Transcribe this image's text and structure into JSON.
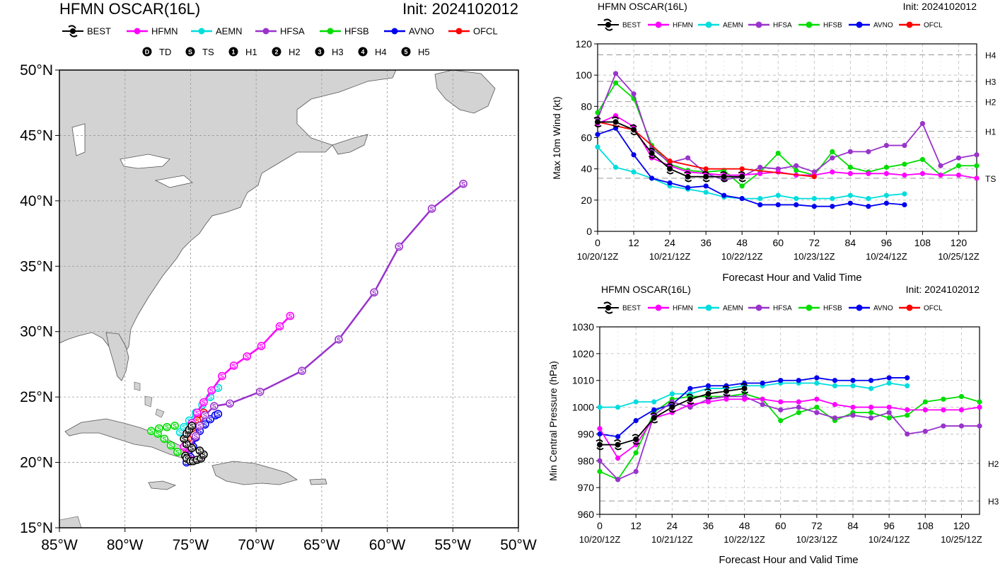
{
  "colors": {
    "BEST": "#000000",
    "HFMN": "#ff00ff",
    "AEMN": "#00dddd",
    "HFSA": "#9933cc",
    "HFSB": "#00dd00",
    "AVNO": "#0000ee",
    "OFCL": "#ff0000",
    "land": "#d3d3d3",
    "coast": "#555555",
    "grid": "#aaaaaa"
  },
  "map": {
    "title": "HFMN OSCAR(16L)",
    "init": "Init: 2024102012",
    "lon_ticks": [
      "85°W",
      "80°W",
      "75°W",
      "70°W",
      "65°W",
      "60°W",
      "55°W",
      "50°W"
    ],
    "lat_ticks": [
      "50°N",
      "45°N",
      "40°N",
      "35°N",
      "30°N",
      "25°N",
      "20°N",
      "15°N"
    ],
    "legend": [
      "BEST",
      "HFMN",
      "AEMN",
      "HFSA",
      "HFSB",
      "AVNO",
      "OFCL"
    ],
    "intensity_legend": [
      {
        "symbol": "D",
        "label": "TD"
      },
      {
        "symbol": "S",
        "label": "TS"
      },
      {
        "symbol": "1",
        "label": "H1"
      },
      {
        "symbol": "2",
        "label": "H2"
      },
      {
        "symbol": "3",
        "label": "H3"
      },
      {
        "symbol": "4",
        "label": "H4"
      },
      {
        "symbol": "5",
        "label": "H5"
      }
    ]
  },
  "wind_chart": {
    "title": "HFMN OSCAR(16L)",
    "init": "Init: 2024102012",
    "ylabel": "Max 10m Wind (kt)",
    "xlabel": "Forecast Hour and Valid Time",
    "legend": [
      "BEST",
      "HFMN",
      "AEMN",
      "HFSA",
      "HFSB",
      "AVNO",
      "OFCL"
    ],
    "category_labels": [
      "H4",
      "H3",
      "H2",
      "H1",
      "TS"
    ],
    "valid_time_labels": [
      "10/20/12Z",
      "10/21/12Z",
      "10/22/12Z",
      "10/23/12Z",
      "10/24/12Z",
      "10/25/12Z"
    ],
    "hour_ticks": [
      "0",
      "12",
      "24",
      "36",
      "48",
      "60",
      "72",
      "84",
      "96",
      "108",
      "120"
    ],
    "y_ticks": [
      "0",
      "20",
      "40",
      "60",
      "80",
      "100",
      "120"
    ]
  },
  "pressure_chart": {
    "title": "HFMN OSCAR(16L)",
    "init": "Init: 2024102012",
    "ylabel": "Min Central Pressure (hPa)",
    "xlabel": "Forecast Hour and Valid Time",
    "legend": [
      "BEST",
      "HFMN",
      "AEMN",
      "HFSA",
      "HFSB",
      "AVNO",
      "OFCL"
    ],
    "category_labels": [
      "H2",
      "H3"
    ],
    "valid_time_labels": [
      "10/20/12Z",
      "10/21/12Z",
      "10/22/12Z",
      "10/23/12Z",
      "10/24/12Z",
      "10/25/12Z"
    ],
    "hour_ticks": [
      "0",
      "12",
      "24",
      "36",
      "48",
      "60",
      "72",
      "84",
      "96",
      "108",
      "120"
    ],
    "y_ticks": [
      "960",
      "970",
      "980",
      "990",
      "1000",
      "1010",
      "1020",
      "1030"
    ]
  },
  "chart_data": [
    {
      "type": "line",
      "name": "track_map",
      "xlim": [
        -85,
        -50
      ],
      "ylim": [
        15,
        50
      ],
      "series": [
        {
          "name": "BEST",
          "lon": [
            -75.4,
            -75.3,
            -75.0,
            -74.8,
            -74.5,
            -74.2,
            -74.0,
            -74.3,
            -74.9,
            -75.3,
            -75.5,
            -75.3,
            -75.1,
            -74.9
          ],
          "lat": [
            20.5,
            20.3,
            20.1,
            20.1,
            20.2,
            20.3,
            20.6,
            20.9,
            21.1,
            21.4,
            21.8,
            22.2,
            22.5,
            22.8
          ]
        },
        {
          "name": "HFMN",
          "lon": [
            -75.0,
            -75.5,
            -75.2,
            -74.9,
            -74.5,
            -74.0,
            -73.4,
            -72.6,
            -71.7,
            -70.7,
            -69.6,
            -68.2,
            -67.4
          ],
          "lat": [
            20.2,
            21.2,
            22.3,
            23.0,
            23.8,
            24.6,
            25.5,
            26.6,
            27.4,
            28.1,
            28.9,
            30.4,
            31.2
          ]
        },
        {
          "name": "AEMN",
          "lon": [
            -75.8,
            -75.5,
            -75.1,
            -74.6,
            -74.1,
            -73.5,
            -72.9
          ],
          "lat": [
            22.3,
            22.7,
            23.2,
            23.8,
            24.4,
            25.0,
            25.7
          ]
        },
        {
          "name": "HFSA",
          "lon": [
            -75.3,
            -75.0,
            -74.6,
            -74.3,
            -73.9,
            -73.2,
            -72.0,
            -69.7,
            -66.5,
            -63.7,
            -61.0,
            -59.1,
            -56.6,
            -54.2
          ],
          "lat": [
            20.4,
            21.2,
            22.0,
            22.8,
            23.6,
            24.3,
            24.5,
            25.4,
            27.0,
            29.4,
            33.0,
            36.5,
            39.4,
            41.3
          ]
        },
        {
          "name": "HFSB",
          "lon": [
            -76.0,
            -76.5,
            -77.0,
            -77.5,
            -78.0,
            -77.4,
            -76.8,
            -76.2
          ],
          "lat": [
            20.8,
            21.3,
            21.8,
            22.2,
            22.4,
            22.6,
            22.7,
            22.8
          ]
        },
        {
          "name": "AVNO",
          "lon": [
            -75.3,
            -75.0,
            -74.8,
            -74.6,
            -74.3,
            -73.9,
            -73.5,
            -73.1,
            -72.9
          ],
          "lat": [
            20.0,
            20.4,
            21.2,
            21.9,
            22.4,
            22.9,
            23.3,
            23.6,
            23.7
          ]
        },
        {
          "name": "OFCL",
          "lon": [
            -75.3,
            -75.2,
            -74.9,
            -74.5,
            -74.0
          ],
          "lat": [
            21.0,
            21.8,
            22.6,
            23.2,
            23.8
          ]
        }
      ]
    },
    {
      "type": "line",
      "name": "max_10m_wind",
      "xlim": [
        0,
        126
      ],
      "ylim": [
        0,
        120
      ],
      "ref_lines": [
        {
          "label": "H4",
          "value": 113
        },
        {
          "label": "H3",
          "value": 96
        },
        {
          "label": "H2",
          "value": 83
        },
        {
          "label": "H1",
          "value": 64
        },
        {
          "label": "TS",
          "value": 34
        }
      ],
      "series": [
        {
          "name": "BEST",
          "x": [
            0,
            6,
            12,
            18,
            24,
            30,
            36,
            42,
            48
          ],
          "y": [
            70,
            70,
            65,
            50,
            40,
            35,
            35,
            35,
            35
          ]
        },
        {
          "name": "HFMN",
          "x": [
            0,
            6,
            12,
            18,
            24,
            30,
            36,
            42,
            48,
            54,
            60,
            66,
            72,
            78,
            84,
            90,
            96,
            102,
            108,
            114,
            120,
            126
          ],
          "y": [
            69,
            74,
            67,
            47,
            42,
            38,
            37,
            36,
            36,
            37,
            38,
            36,
            36,
            38,
            37,
            37,
            37,
            36,
            37,
            36,
            36,
            34
          ]
        },
        {
          "name": "AEMN",
          "x": [
            0,
            6,
            12,
            18,
            24,
            30,
            36,
            42,
            48,
            54,
            60,
            66,
            72,
            78,
            84,
            90,
            96,
            102
          ],
          "y": [
            54,
            41,
            38,
            34,
            29,
            27,
            25,
            22,
            21,
            21,
            23,
            21,
            21,
            21,
            23,
            21,
            23,
            24
          ]
        },
        {
          "name": "HFSA",
          "x": [
            0,
            6,
            12,
            18,
            24,
            30,
            36,
            42,
            48,
            54,
            60,
            66,
            72,
            78,
            84,
            90,
            96,
            102,
            108,
            114,
            120,
            126
          ],
          "y": [
            72,
            101,
            88,
            53,
            44,
            47,
            37,
            33,
            35,
            41,
            40,
            42,
            38,
            47,
            51,
            51,
            55,
            55,
            69,
            42,
            47,
            49
          ]
        },
        {
          "name": "HFSB",
          "x": [
            0,
            6,
            12,
            18,
            24,
            30,
            36,
            42,
            48,
            54,
            60,
            66,
            72,
            78,
            84,
            90,
            96,
            102,
            108,
            114,
            120,
            126
          ],
          "y": [
            76,
            95,
            85,
            55,
            43,
            39,
            38,
            39,
            29,
            38,
            50,
            39,
            36,
            51,
            41,
            38,
            41,
            43,
            46,
            36,
            42,
            42
          ]
        },
        {
          "name": "AVNO",
          "x": [
            0,
            6,
            12,
            18,
            24,
            30,
            36,
            42,
            48,
            54,
            60,
            66,
            72,
            78,
            84,
            90,
            96,
            102
          ],
          "y": [
            62,
            66,
            49,
            34,
            31,
            28,
            29,
            23,
            21,
            17,
            17,
            17,
            16,
            16,
            18,
            16,
            18,
            17
          ]
        },
        {
          "name": "OFCL",
          "x": [
            0,
            12,
            24,
            36,
            48,
            72
          ],
          "y": [
            70,
            65,
            45,
            40,
            40,
            35
          ]
        }
      ]
    },
    {
      "type": "line",
      "name": "min_central_pressure",
      "xlim": [
        0,
        126
      ],
      "ylim": [
        960,
        1030
      ],
      "ref_lines": [
        {
          "label": "H2",
          "value": 979
        },
        {
          "label": "H3",
          "value": 965
        }
      ],
      "series": [
        {
          "name": "BEST",
          "x": [
            0,
            6,
            12,
            18,
            24,
            30,
            36,
            42,
            48
          ],
          "y": [
            986,
            986,
            988,
            996,
            1000,
            1003,
            1005,
            1006,
            1007
          ]
        },
        {
          "name": "HFMN",
          "x": [
            0,
            6,
            12,
            18,
            24,
            30,
            36,
            42,
            48,
            54,
            60,
            66,
            72,
            78,
            84,
            90,
            96,
            102,
            108,
            114,
            120,
            126
          ],
          "y": [
            992,
            981,
            986,
            996,
            998,
            1001,
            1002,
            1003,
            1003,
            1003,
            1002,
            1002,
            1003,
            1001,
            1000,
            1000,
            1000,
            999,
            999,
            999,
            999,
            1000
          ]
        },
        {
          "name": "AEMN",
          "x": [
            0,
            6,
            12,
            18,
            24,
            30,
            36,
            42,
            48,
            54,
            60,
            66,
            72,
            78,
            84,
            90,
            96,
            102
          ],
          "y": [
            1000,
            1000,
            1002,
            1002,
            1005,
            1005,
            1007,
            1007,
            1008,
            1008,
            1009,
            1009,
            1009,
            1008,
            1008,
            1007,
            1009,
            1008
          ]
        },
        {
          "name": "HFSA",
          "x": [
            0,
            6,
            12,
            18,
            24,
            30,
            36,
            42,
            48,
            54,
            60,
            66,
            72,
            78,
            84,
            90,
            96,
            102,
            108,
            114,
            120,
            126
          ],
          "y": [
            980,
            973,
            976,
            997,
            1002,
            1000,
            1003,
            1004,
            1004,
            1001,
            999,
            1000,
            998,
            996,
            997,
            996,
            998,
            990,
            991,
            993,
            993,
            993
          ]
        },
        {
          "name": "HFSB",
          "x": [
            0,
            6,
            12,
            18,
            24,
            30,
            36,
            42,
            48,
            54,
            60,
            66,
            72,
            78,
            84,
            90,
            96,
            102,
            108,
            114,
            120,
            126
          ],
          "y": [
            976,
            973,
            983,
            998,
            1003,
            1004,
            1004,
            1004,
            1005,
            1003,
            995,
            998,
            1000,
            995,
            998,
            998,
            996,
            997,
            1002,
            1003,
            1004,
            1002
          ]
        },
        {
          "name": "AVNO",
          "x": [
            0,
            6,
            12,
            18,
            24,
            30,
            36,
            42,
            48,
            54,
            60,
            66,
            72,
            78,
            84,
            90,
            96,
            102
          ],
          "y": [
            990,
            989,
            995,
            999,
            1001,
            1007,
            1008,
            1008,
            1009,
            1009,
            1010,
            1010,
            1011,
            1010,
            1010,
            1010,
            1011,
            1011
          ]
        }
      ]
    }
  ]
}
